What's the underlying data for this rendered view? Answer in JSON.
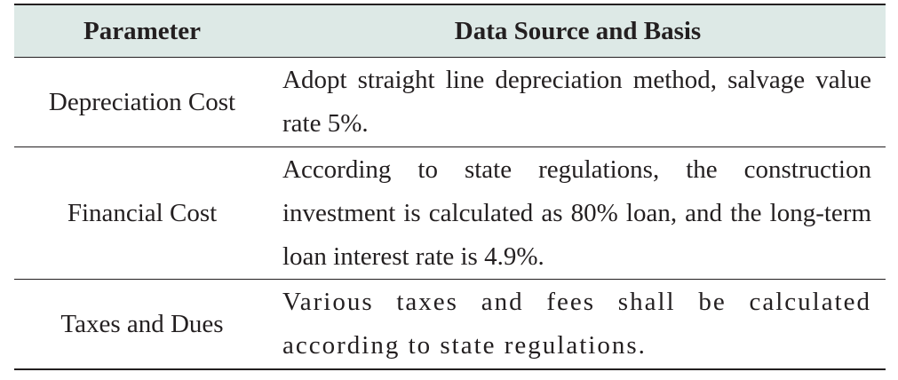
{
  "table": {
    "headers": [
      "Parameter",
      "Data Source and Basis"
    ],
    "rows": [
      {
        "parameter": "Depreciation Cost",
        "basis": "Adopt straight line depreciation method, salvage value rate 5%."
      },
      {
        "parameter": "Financial Cost",
        "basis": "According to state regulations, the construction investment is calculated as 80% loan, and the long-term loan interest rate is 4.9%."
      },
      {
        "parameter": "Taxes and Dues",
        "basis": "Various taxes and fees shall be calculated according to state regulations."
      }
    ]
  }
}
